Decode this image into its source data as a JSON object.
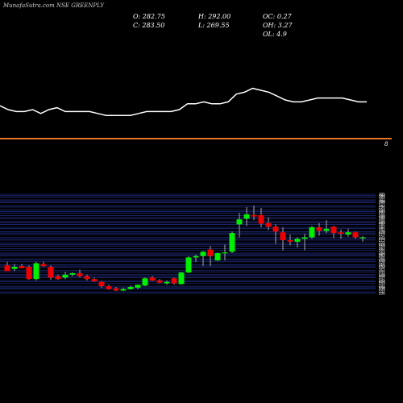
{
  "watermark": "MunafaSutra.com NSE GREENPLY",
  "ohlc": {
    "o": "O: 282.75",
    "h": "H: 292.00",
    "oc": "OC: 0.27",
    "c": "C: 283.50",
    "l": "L: 269.55",
    "oh": "OH: 3.27",
    "ol": "OL: 4.9"
  },
  "indicator_marker": "8",
  "colors": {
    "background": "#000000",
    "up": "#00ee00",
    "down": "#ee0000",
    "separator": "#e8742a",
    "grid": "#2a3aa8",
    "indicator_line": "#ffffff"
  },
  "chart_data": [
    {
      "type": "line",
      "name": "indicator",
      "values": [
        62,
        60,
        59,
        59,
        60,
        58,
        60,
        61,
        59,
        59,
        59,
        59,
        58,
        57,
        57,
        57,
        57,
        58,
        59,
        59,
        59,
        59,
        60,
        63,
        63,
        64,
        63,
        63,
        64,
        68,
        69,
        71,
        70,
        69,
        67,
        65,
        64,
        64,
        65,
        66,
        66,
        66,
        66,
        65,
        64,
        64
      ]
    },
    {
      "type": "candlestick",
      "ylim": [
        236,
        305
      ],
      "y_ticks": [
        305,
        304,
        303,
        301,
        300,
        299,
        297,
        296,
        294,
        293,
        292,
        290,
        289,
        288,
        286,
        285,
        284,
        282,
        281,
        279,
        278,
        277,
        275,
        274,
        273,
        271,
        270,
        269,
        267,
        266,
        264,
        263,
        262,
        260,
        259,
        258,
        256,
        255,
        254,
        252,
        251,
        249,
        248,
        247,
        245,
        244,
        243,
        241,
        240,
        239,
        237,
        236
      ],
      "candles": [
        {
          "o": 255.5,
          "h": 258.0,
          "l": 252.0,
          "c": 251.5
        },
        {
          "o": 253.0,
          "h": 256.5,
          "l": 251.5,
          "c": 254.5
        },
        {
          "o": 255.0,
          "h": 256.5,
          "l": 253.5,
          "c": 253.5
        },
        {
          "o": 254.5,
          "h": 255.5,
          "l": 245.5,
          "c": 246.0
        },
        {
          "o": 246.0,
          "h": 258.0,
          "l": 245.0,
          "c": 257.0
        },
        {
          "o": 256.5,
          "h": 258.0,
          "l": 254.5,
          "c": 255.0
        },
        {
          "o": 254.5,
          "h": 255.5,
          "l": 245.5,
          "c": 247.0
        },
        {
          "o": 248.0,
          "h": 249.0,
          "l": 245.5,
          "c": 246.0
        },
        {
          "o": 247.0,
          "h": 251.0,
          "l": 246.0,
          "c": 249.0
        },
        {
          "o": 249.0,
          "h": 250.5,
          "l": 248.0,
          "c": 250.0
        },
        {
          "o": 250.0,
          "h": 252.5,
          "l": 247.0,
          "c": 248.0
        },
        {
          "o": 248.0,
          "h": 249.0,
          "l": 245.0,
          "c": 246.0
        },
        {
          "o": 246.0,
          "h": 247.0,
          "l": 244.0,
          "c": 244.5
        },
        {
          "o": 244.0,
          "h": 244.5,
          "l": 240.0,
          "c": 241.0
        },
        {
          "o": 241.0,
          "h": 242.0,
          "l": 238.5,
          "c": 239.0
        },
        {
          "o": 239.5,
          "h": 240.5,
          "l": 237.5,
          "c": 238.0
        },
        {
          "o": 238.0,
          "h": 240.0,
          "l": 237.5,
          "c": 239.0
        },
        {
          "o": 239.0,
          "h": 241.5,
          "l": 238.5,
          "c": 240.5
        },
        {
          "o": 240.0,
          "h": 242.0,
          "l": 239.0,
          "c": 242.0
        },
        {
          "o": 241.5,
          "h": 247.0,
          "l": 241.0,
          "c": 246.5
        },
        {
          "o": 247.0,
          "h": 248.0,
          "l": 244.5,
          "c": 245.0
        },
        {
          "o": 245.0,
          "h": 246.0,
          "l": 243.0,
          "c": 243.5
        },
        {
          "o": 243.0,
          "h": 245.0,
          "l": 242.0,
          "c": 244.0
        },
        {
          "o": 246.5,
          "h": 247.0,
          "l": 242.0,
          "c": 243.0
        },
        {
          "o": 242.5,
          "h": 251.0,
          "l": 242.0,
          "c": 250.5
        },
        {
          "o": 250.5,
          "h": 262.0,
          "l": 250.0,
          "c": 261.0
        },
        {
          "o": 261.0,
          "h": 263.0,
          "l": 258.0,
          "c": 262.0
        },
        {
          "o": 262.0,
          "h": 265.5,
          "l": 255.0,
          "c": 265.0
        },
        {
          "o": 266.5,
          "h": 269.0,
          "l": 255.0,
          "c": 262.0
        },
        {
          "o": 259.0,
          "h": 264.5,
          "l": 258.5,
          "c": 264.0
        },
        {
          "o": 264.0,
          "h": 270.0,
          "l": 259.0,
          "c": 264.5
        },
        {
          "o": 265.0,
          "h": 279.0,
          "l": 264.0,
          "c": 278.0
        },
        {
          "o": 284.0,
          "h": 292.0,
          "l": 275.0,
          "c": 287.5
        },
        {
          "o": 288.0,
          "h": 296.0,
          "l": 283.0,
          "c": 291.0
        },
        {
          "o": 290.5,
          "h": 297.0,
          "l": 287.0,
          "c": 289.5
        },
        {
          "o": 290.5,
          "h": 295.5,
          "l": 282.0,
          "c": 284.5
        },
        {
          "o": 285.0,
          "h": 289.0,
          "l": 280.0,
          "c": 282.5
        },
        {
          "o": 282.5,
          "h": 284.0,
          "l": 270.5,
          "c": 279.0
        },
        {
          "o": 278.5,
          "h": 282.0,
          "l": 266.0,
          "c": 273.0
        },
        {
          "o": 273.0,
          "h": 277.0,
          "l": 269.5,
          "c": 272.0
        },
        {
          "o": 272.0,
          "h": 275.0,
          "l": 268.0,
          "c": 274.0
        },
        {
          "o": 274.0,
          "h": 277.5,
          "l": 266.0,
          "c": 275.0
        },
        {
          "o": 275.0,
          "h": 283.0,
          "l": 274.0,
          "c": 282.0
        },
        {
          "o": 282.0,
          "h": 285.0,
          "l": 276.0,
          "c": 279.5
        },
        {
          "o": 279.5,
          "h": 287.0,
          "l": 278.0,
          "c": 281.0
        },
        {
          "o": 282.5,
          "h": 283.0,
          "l": 274.5,
          "c": 278.0
        },
        {
          "o": 278.5,
          "h": 280.5,
          "l": 274.0,
          "c": 277.5
        },
        {
          "o": 277.0,
          "h": 281.0,
          "l": 275.5,
          "c": 278.5
        },
        {
          "o": 278.5,
          "h": 279.0,
          "l": 274.0,
          "c": 275.0
        },
        {
          "o": 275.0,
          "h": 276.0,
          "l": 272.0,
          "c": 275.0
        }
      ]
    }
  ]
}
